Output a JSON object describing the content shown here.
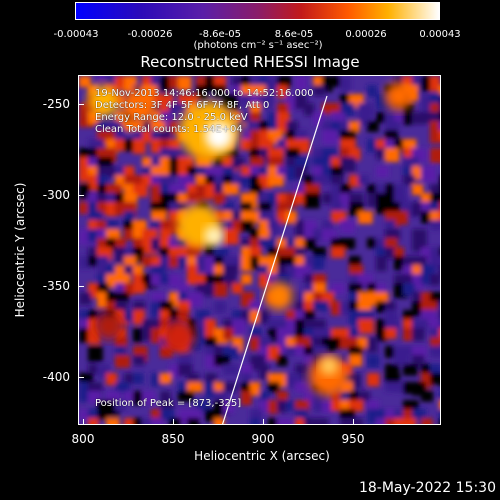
{
  "colorbar": {
    "ticks": [
      "-0.00043",
      "-0.00026",
      "-8.6e-05",
      "8.6e-05",
      "0.00026",
      "0.00043"
    ],
    "unit": "(photons cm⁻² s⁻¹ asec⁻²)",
    "colors": [
      "#0000ff",
      "#5a1ea8",
      "#c21a1a",
      "#ff5a00",
      "#ffb000",
      "#ffffff"
    ]
  },
  "plot": {
    "title": "Reconstructed RHESSI Image",
    "info_lines": [
      "19-Nov-2013 14:46:16.000 to 14:52:16.000",
      "Detectors: 3F 4F 5F 6F 7F 8F, Att 0",
      "Energy Range: 12.0 - 25.0 keV",
      "Clean    Total counts: 1.54E+04"
    ],
    "peak_label": "Position of Peak = [873,-325]",
    "x_label": "Heliocentric X (arcsec)",
    "y_label": "Heliocentric Y (arcsec)",
    "x_ticks": [
      "800",
      "850",
      "900",
      "950"
    ],
    "y_ticks": [
      "-250",
      "-300",
      "-350",
      "-400"
    ],
    "x_range": [
      797,
      988
    ],
    "y_range": [
      -427,
      -236
    ]
  },
  "footer": {
    "timestamp": "18-May-2022 15:30"
  }
}
